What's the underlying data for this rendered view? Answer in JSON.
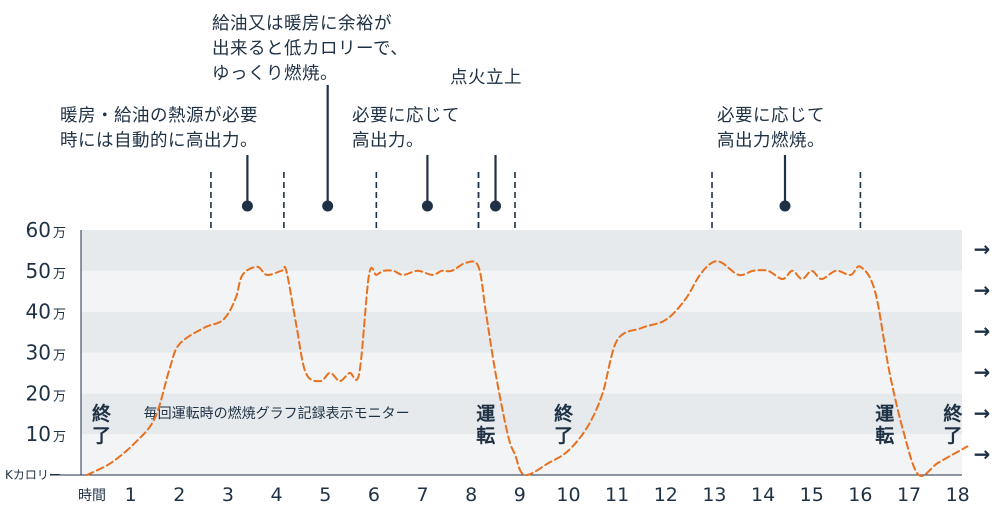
{
  "annotations": [
    {
      "lines": [
        "暖房・給油の熱源が必要",
        "時には自動的に高出力。"
      ]
    },
    {
      "lines": [
        "給油又は暖房に余裕が",
        "出来ると低カロリーで、",
        "ゆっくり燃焼。"
      ]
    },
    {
      "lines": [
        "必要に応じて",
        "高出力。"
      ]
    },
    {
      "lines": [
        "点火立上"
      ]
    },
    {
      "lines": [
        "必要に応じて",
        "高出力燃焼。"
      ]
    }
  ],
  "colors": {
    "band_light": "#f3f4f5",
    "band_dark": "#e6eaed",
    "text": "#1f3144",
    "curve": "#e8711f",
    "axis": "#1f3144"
  },
  "chart_data": {
    "type": "line",
    "title": "毎回運転時の燃焼グラフ記録表示モニター",
    "xlabel": "時間",
    "ylabel": "Kカロリー",
    "x_ticks": [
      "1",
      "2",
      "3",
      "4",
      "5",
      "6",
      "7",
      "8",
      "9",
      "10",
      "11",
      "12",
      "13",
      "14",
      "15",
      "16",
      "17",
      "18"
    ],
    "y_ticks": [
      {
        "value": 10,
        "num": "10",
        "unit": "万"
      },
      {
        "value": 20,
        "num": "20",
        "unit": "万"
      },
      {
        "value": 30,
        "num": "30",
        "unit": "万"
      },
      {
        "value": 40,
        "num": "40",
        "unit": "万"
      },
      {
        "value": 50,
        "num": "50",
        "unit": "万"
      },
      {
        "value": 60,
        "num": "60",
        "unit": "万"
      }
    ],
    "xlim": [
      0.1,
      18.2
    ],
    "ylim": [
      0,
      60
    ],
    "grid_bands": true,
    "series": [
      {
        "style": "dashed",
        "x": [
          0.1,
          0.6,
          1.1,
          1.5,
          1.8,
          2.0,
          2.5,
          2.9,
          3.15,
          3.3,
          3.6,
          3.8,
          4.1,
          4.2,
          4.4,
          4.6,
          4.9,
          5.1,
          5.3,
          5.5,
          5.7,
          5.9,
          6.05,
          6.2,
          6.4,
          6.6,
          6.9,
          7.2,
          7.4,
          7.6,
          7.9,
          8.15,
          8.3,
          8.5,
          8.75,
          8.9,
          9.1,
          9.6,
          10.0,
          10.4,
          10.7,
          11.0,
          11.5,
          12.0,
          12.4,
          12.7,
          12.95,
          13.15,
          13.5,
          13.8,
          14.1,
          14.4,
          14.6,
          14.8,
          15.0,
          15.2,
          15.5,
          15.8,
          16.0,
          16.3,
          16.6,
          16.9,
          17.2,
          17.6,
          18.2
        ],
        "y": [
          0,
          3,
          8,
          14,
          26,
          32,
          36,
          38,
          43,
          49,
          51,
          49,
          50,
          50,
          37,
          25,
          23,
          25,
          23,
          25,
          25,
          49,
          49,
          50,
          50,
          49,
          50,
          49,
          50,
          50,
          52,
          51,
          40,
          25,
          10,
          5,
          0,
          3,
          6,
          12,
          20,
          33,
          36,
          38,
          43,
          49,
          52,
          52,
          49,
          50,
          50,
          48,
          50,
          48,
          50,
          48,
          50,
          49,
          51,
          45,
          25,
          10,
          0,
          3,
          7
        ]
      }
    ],
    "markers": [
      {
        "type": "range",
        "x": [
          2.65,
          4.15
        ],
        "dot": 3.4
      },
      {
        "type": "point",
        "dot": 5.05
      },
      {
        "type": "range",
        "x": [
          6.05,
          8.15
        ],
        "dot": 7.1
      },
      {
        "type": "range",
        "x": [
          8.15,
          8.9
        ],
        "dot": 8.5
      },
      {
        "type": "range",
        "x": [
          12.95,
          16.0
        ],
        "dot": 14.45
      }
    ],
    "state_labels": [
      {
        "x": 0.4,
        "lines": [
          "終",
          "了"
        ]
      },
      {
        "x": 8.3,
        "lines": [
          "運",
          "転"
        ]
      },
      {
        "x": 9.9,
        "lines": [
          "終",
          "了"
        ]
      },
      {
        "x": 16.5,
        "lines": [
          "運",
          "転"
        ]
      },
      {
        "x": 17.9,
        "lines": [
          "終",
          "了"
        ]
      }
    ],
    "right_arrows": [
      "→",
      "→",
      "→",
      "→",
      "→",
      "→"
    ]
  }
}
